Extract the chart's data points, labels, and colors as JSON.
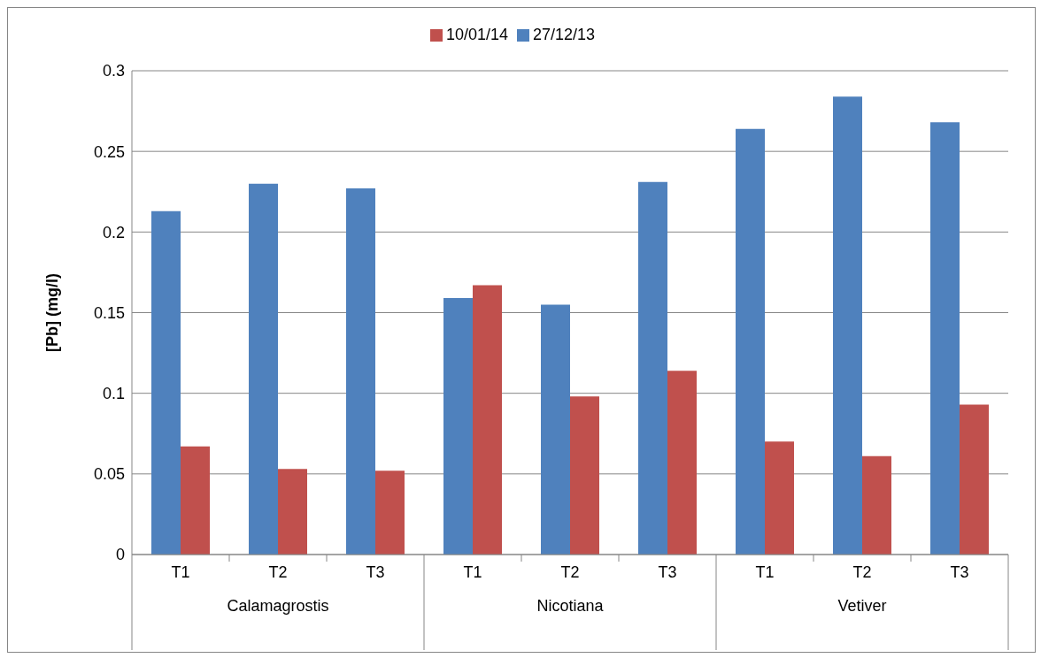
{
  "chart_data": {
    "type": "bar",
    "categories": [
      "T1",
      "T2",
      "T3",
      "T1",
      "T2",
      "T3",
      "T1",
      "T2",
      "T3"
    ],
    "annotations": [
      "Calamagrostis",
      "Nicotiana",
      "Vetiver"
    ],
    "ylabel": "[Pb] (mg/l)",
    "series": [
      {
        "name": "27/12/13",
        "color": "#4f81bd",
        "values": [
          0.213,
          0.23,
          0.227,
          0.159,
          0.155,
          0.231,
          0.264,
          0.284,
          0.268
        ]
      },
      {
        "name": "10/01/14",
        "color": "#c0504d",
        "values": [
          0.067,
          0.053,
          0.052,
          0.167,
          0.098,
          0.114,
          0.07,
          0.061,
          0.093
        ]
      }
    ],
    "ylim": [
      0,
      0.3
    ],
    "yticks": [
      0,
      0.05,
      0.1,
      0.15,
      0.2,
      0.25,
      0.3
    ],
    "grid": "y",
    "legend": "top"
  }
}
